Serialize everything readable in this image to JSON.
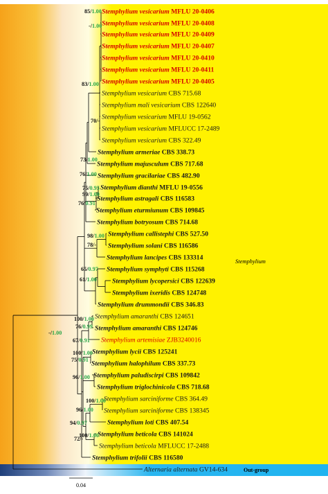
{
  "colors": {
    "highlight": "#d40000",
    "support_bold": "#111111",
    "support_green": "#2aa64a",
    "group_band_left": "#f6a21a",
    "group_band_main": "#fff200",
    "outgroup_band_main": "#1fb3ef",
    "outgroup_band_left": "#1f3f7a",
    "branch": "#000000"
  },
  "taxa": [
    {
      "genus": "Stemphylium",
      "epithet": "vesicarium",
      "strain": "MFLU 20-0406",
      "bold": true,
      "red": true
    },
    {
      "genus": "Stemphylium",
      "epithet": "vesicarium",
      "strain": "MFLU 20-0408",
      "bold": true,
      "red": true
    },
    {
      "genus": "Stemphylium",
      "epithet": "vesicarium",
      "strain": "MFLU 20-0409",
      "bold": true,
      "red": true
    },
    {
      "genus": "Stemphylium",
      "epithet": "vesicarium",
      "strain": "MFLU 20-0407",
      "bold": true,
      "red": true
    },
    {
      "genus": "Stemphylium",
      "epithet": "vesicarium",
      "strain": "MFLU 20-0410",
      "bold": true,
      "red": true
    },
    {
      "genus": "Stemphylium",
      "epithet": "vesicarium",
      "strain": "MFLU 20-0411",
      "bold": true,
      "red": true
    },
    {
      "genus": "Stemphylium",
      "epithet": "vesicarium",
      "strain": "MFLU 20-0405",
      "bold": true,
      "red": true
    },
    {
      "genus": "Stemphylium",
      "epithet": "vesicarium",
      "strain": "CBS 715.68",
      "bold": false,
      "red": false
    },
    {
      "genus": "Stemphylium",
      "epithet": "mali vesicarium",
      "strain": "CBS 122640",
      "bold": false,
      "red": false
    },
    {
      "genus": "Stemphylium",
      "epithet": "vesicarium",
      "strain": "MFLU 19-0562",
      "bold": false,
      "red": false
    },
    {
      "genus": "Stemphylium",
      "epithet": "vesicarium",
      "strain": "MFLUCC 17-2489",
      "bold": false,
      "red": false
    },
    {
      "genus": "Stemphylium",
      "epithet": "vesicarium",
      "strain": "CBS 322.49",
      "bold": false,
      "red": false
    },
    {
      "genus": "Stemphylium",
      "epithet": "armeriae",
      "strain": "CBS 338.73",
      "bold": true,
      "red": false
    },
    {
      "genus": "Stemphylium",
      "epithet": "majusculum",
      "strain": "CBS 717.68",
      "bold": true,
      "red": false
    },
    {
      "genus": "Stemphylium",
      "epithet": "gracilariae",
      "strain": "CBS 482.90",
      "bold": true,
      "red": false
    },
    {
      "genus": "Stemphylium",
      "epithet": "dianthi",
      "strain": "MFLU 19-0556",
      "bold": true,
      "red": false
    },
    {
      "genus": "Stemphylium",
      "epithet": "astragali",
      "strain": "CBS 116583",
      "bold": true,
      "red": false
    },
    {
      "genus": "Stemphylium",
      "epithet": "eturmiunum",
      "strain": "CBS 109845",
      "bold": true,
      "red": false
    },
    {
      "genus": "Stemphylium",
      "epithet": "botryosum",
      "strain": "CBS 714.68",
      "bold": true,
      "red": false
    },
    {
      "genus": "Stemphylium",
      "epithet": "callistephi",
      "strain": "CBS 527.50",
      "bold": true,
      "red": false
    },
    {
      "genus": "Stemphylium",
      "epithet": "solani",
      "strain": "CBS 116586",
      "bold": true,
      "red": false
    },
    {
      "genus": "Stemphylium",
      "epithet": "lancipes",
      "strain": "CBS 133314",
      "bold": true,
      "red": false
    },
    {
      "genus": "Stemphylium",
      "epithet": "symphyti",
      "strain": "CBS 115268",
      "bold": true,
      "red": false
    },
    {
      "genus": "Stemphylium",
      "epithet": "lycopersici",
      "strain": "CBS 122639",
      "bold": true,
      "red": false
    },
    {
      "genus": "Stemphylium",
      "epithet": "ixeridis",
      "strain": "CBS 124748",
      "bold": true,
      "red": false
    },
    {
      "genus": "Stemphylium",
      "epithet": "drummondii",
      "strain": "CBS 346.83",
      "bold": true,
      "red": false
    },
    {
      "genus": "Stemphylium",
      "epithet": "amaranthi",
      "strain": "CBS 124651",
      "bold": false,
      "red": false
    },
    {
      "genus": "Stemphylium",
      "epithet": "amaranthi",
      "strain": "CBS 124746",
      "bold": true,
      "red": false
    },
    {
      "genus": "Stemphylium",
      "epithet": "artemisiae",
      "strain": "ZJB3240016",
      "bold": false,
      "red": true
    },
    {
      "genus": "Stemphylium",
      "epithet": "lycii",
      "strain": "CBS 125241",
      "bold": true,
      "red": false
    },
    {
      "genus": "Stemphylium",
      "epithet": "halophilum",
      "strain": "CBS 337.73",
      "bold": true,
      "red": false
    },
    {
      "genus": "Stemphylium",
      "epithet": "paludiscirpi",
      "strain": "CBS 109842",
      "bold": true,
      "red": false
    },
    {
      "genus": "Stemphylium",
      "epithet": "triglochinicola",
      "strain": "CBS 718.68",
      "bold": true,
      "red": false
    },
    {
      "genus": "Stemphylium",
      "epithet": "sarciniforme",
      "strain": "CBS 364.49",
      "bold": false,
      "red": false
    },
    {
      "genus": "Stemphylium",
      "epithet": "sarciniforme",
      "strain": "CBS 138345",
      "bold": false,
      "red": false
    },
    {
      "genus": "Stemphylium",
      "epithet": "loti",
      "strain": "CBS 407.54",
      "bold": true,
      "red": false
    },
    {
      "genus": "Stemphylium",
      "epithet": "beticola",
      "strain": "CBS 141024",
      "bold": true,
      "red": false
    },
    {
      "genus": "Stemphylium",
      "epithet": "beticola",
      "strain": "MFLUCC 17-2488",
      "bold": false,
      "red": false
    },
    {
      "genus": "Stemphylium",
      "epithet": "trifolii",
      "strain": "CBS 116580",
      "bold": true,
      "red": false
    },
    {
      "genus": "Alternaria",
      "epithet": "alternata",
      "strain": "GV14-634",
      "bold": false,
      "red": false
    }
  ],
  "support": [
    {
      "ml": "85",
      "pp": "1.00"
    },
    {
      "ml": "-",
      "pp": "1.00"
    },
    {
      "ml": "83",
      "pp": "1.00"
    },
    {
      "ml": "70",
      "pp": "-"
    },
    {
      "ml": "73",
      "pp": "1.00"
    },
    {
      "ml": "76",
      "pp": "1.00"
    },
    {
      "ml": "75",
      "pp": "0.95"
    },
    {
      "ml": "99",
      "pp": "1.00"
    },
    {
      "ml": "76",
      "pp": "0.91"
    },
    {
      "ml": "98",
      "pp": "1.00"
    },
    {
      "ml": "78",
      "pp": "-"
    },
    {
      "ml": "65",
      "pp": "0.97"
    },
    {
      "ml": "61",
      "pp": "1.00"
    },
    {
      "ml": "100",
      "pp": "1.00"
    },
    {
      "ml": "76",
      "pp": "0.99"
    },
    {
      "ml": "-",
      "pp": "1.00"
    },
    {
      "ml": "67",
      "pp": "0.91"
    },
    {
      "ml": "100",
      "pp": "1.00"
    },
    {
      "ml": "75",
      "pp": "0.91"
    },
    {
      "ml": "96",
      "pp": "1.00"
    },
    {
      "ml": "100",
      "pp": "1.00"
    },
    {
      "ml": "96",
      "pp": "1.00"
    },
    {
      "ml": "94",
      "pp": "0.97"
    },
    {
      "ml": "100",
      "pp": "1.00"
    },
    {
      "ml": "72",
      "pp": "-"
    }
  ],
  "clades": {
    "ingroup": "Stemphylium",
    "outgroup": "Out-group"
  },
  "scale_bar": {
    "label": "0.04"
  }
}
